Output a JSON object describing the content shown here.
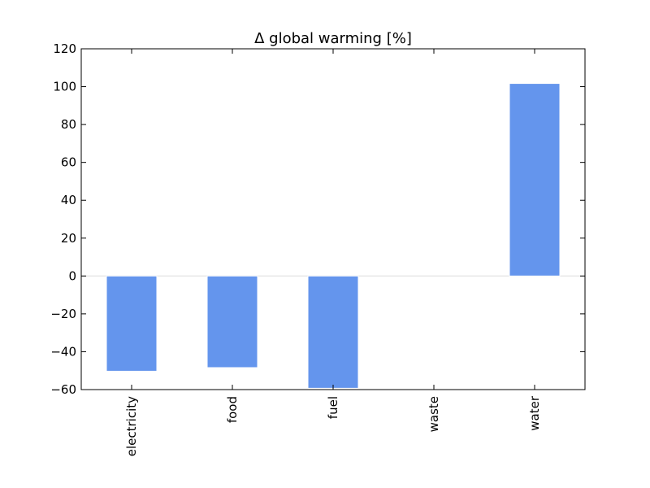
{
  "chart_data": {
    "type": "bar",
    "title": "Δ global warming [%]",
    "categories": [
      "electricity",
      "food",
      "fuel",
      "waste",
      "water"
    ],
    "values": [
      -50.3,
      -48.4,
      -59.3,
      0,
      101.7
    ],
    "ylim": [
      -60,
      120
    ],
    "yticks": [
      -60,
      -40,
      -20,
      0,
      20,
      40,
      60,
      80,
      100,
      120
    ],
    "ytick_labels": [
      "−60",
      "−40",
      "−20",
      "0",
      "20",
      "40",
      "60",
      "80",
      "100",
      "120"
    ],
    "xlabel": "",
    "ylabel": "",
    "grid": false,
    "bar_color": "#6495ED",
    "zero_line_color": "#e6e6e6"
  }
}
